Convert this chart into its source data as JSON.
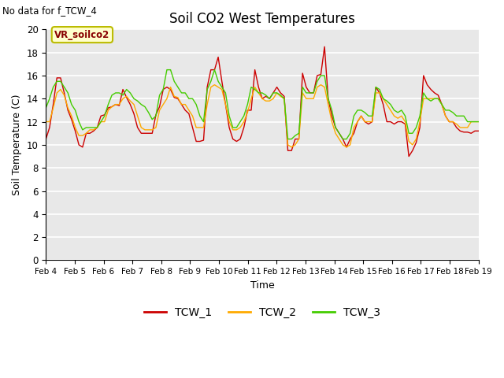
{
  "title": "Soil CO2 West Temperatures",
  "xlabel": "Time",
  "ylabel": "Soil Temperature (C)",
  "no_data_label": "No data for f_TCW_4",
  "annotation_label": "VR_soilco2",
  "ylim": [
    0,
    20
  ],
  "yticks": [
    0,
    2,
    4,
    6,
    8,
    10,
    12,
    14,
    16,
    18,
    20
  ],
  "x_labels": [
    "Feb 4",
    "Feb 5",
    "Feb 6",
    "Feb 7",
    "Feb 8",
    "Feb 9",
    "Feb 10",
    "Feb 11",
    "Feb 12",
    "Feb 13",
    "Feb 14",
    "Feb 15",
    "Feb 16",
    "Feb 17",
    "Feb 18",
    "Feb 19"
  ],
  "fig_bg": "#ffffff",
  "plot_bg": "#e8e8e8",
  "grid_color": "#ffffff",
  "line_colors": {
    "TCW_1": "#cc0000",
    "TCW_2": "#ffaa00",
    "TCW_3": "#44cc00"
  },
  "TCW_1": [
    10.5,
    11.5,
    13.5,
    15.8,
    15.8,
    14.5,
    13.0,
    12.2,
    11.2,
    10.0,
    9.8,
    11.0,
    11.0,
    11.2,
    11.5,
    12.5,
    12.6,
    13.2,
    13.3,
    13.5,
    13.4,
    14.8,
    14.1,
    13.5,
    12.7,
    11.5,
    11.0,
    11.0,
    11.0,
    11.0,
    12.6,
    13.3,
    14.8,
    15.0,
    14.8,
    14.1,
    14.0,
    13.5,
    13.0,
    12.7,
    11.5,
    10.3,
    10.3,
    10.4,
    15.0,
    16.5,
    16.5,
    17.6,
    15.5,
    13.5,
    11.5,
    10.5,
    10.3,
    10.5,
    11.5,
    13.0,
    13.0,
    16.5,
    15.0,
    14.0,
    14.2,
    14.0,
    14.5,
    15.0,
    14.5,
    14.2,
    9.5,
    9.5,
    10.5,
    10.5,
    16.2,
    15.0,
    14.5,
    14.5,
    16.0,
    16.1,
    18.5,
    14.0,
    12.5,
    11.5,
    11.0,
    10.5,
    9.8,
    10.5,
    11.0,
    12.0,
    12.5,
    12.0,
    11.8,
    12.0,
    15.0,
    14.5,
    13.5,
    12.0,
    12.0,
    11.8,
    12.0,
    12.0,
    11.8,
    9.0,
    9.5,
    10.2,
    11.5,
    16.0,
    15.2,
    14.8,
    14.5,
    14.3,
    13.5,
    12.5,
    12.0,
    12.0,
    11.5,
    11.2,
    11.1,
    11.1,
    11.0,
    11.2,
    11.2
  ],
  "TCW_2": [
    12.0,
    12.0,
    13.2,
    14.5,
    14.8,
    14.3,
    13.2,
    12.5,
    11.5,
    10.8,
    10.8,
    11.0,
    11.3,
    11.3,
    11.5,
    12.0,
    12.0,
    13.0,
    13.3,
    13.5,
    13.5,
    14.0,
    14.2,
    13.8,
    13.5,
    12.5,
    11.5,
    11.3,
    11.3,
    11.3,
    11.5,
    13.0,
    13.5,
    14.0,
    15.0,
    14.2,
    14.1,
    13.5,
    13.5,
    13.0,
    12.5,
    11.5,
    11.5,
    11.5,
    13.5,
    15.0,
    15.2,
    15.0,
    14.8,
    13.5,
    12.0,
    11.3,
    11.3,
    11.5,
    12.0,
    12.8,
    14.0,
    15.0,
    14.5,
    14.0,
    13.8,
    13.8,
    14.0,
    14.5,
    14.2,
    14.0,
    10.0,
    9.8,
    10.0,
    10.5,
    14.5,
    14.0,
    14.0,
    14.0,
    15.0,
    15.2,
    15.0,
    13.5,
    12.0,
    11.0,
    10.5,
    10.0,
    9.8,
    10.0,
    11.5,
    12.0,
    12.5,
    12.0,
    12.0,
    12.0,
    14.5,
    14.5,
    14.0,
    13.5,
    13.0,
    12.5,
    12.3,
    12.5,
    12.0,
    10.3,
    10.0,
    10.5,
    12.0,
    14.0,
    14.0,
    14.0,
    14.0,
    14.0,
    13.5,
    12.5,
    12.0,
    12.0,
    11.8,
    11.5,
    11.5,
    11.5,
    12.0,
    12.0,
    12.0
  ],
  "TCW_3": [
    13.2,
    14.0,
    15.0,
    15.5,
    15.5,
    15.0,
    14.5,
    13.5,
    13.0,
    12.0,
    11.3,
    11.5,
    11.5,
    11.5,
    11.5,
    12.0,
    12.5,
    13.5,
    14.3,
    14.5,
    14.5,
    14.3,
    14.8,
    14.5,
    14.0,
    13.8,
    13.5,
    13.3,
    12.8,
    12.2,
    12.5,
    14.3,
    14.8,
    16.5,
    16.5,
    15.5,
    15.0,
    14.5,
    14.5,
    14.0,
    14.0,
    13.5,
    12.5,
    12.0,
    14.8,
    15.5,
    16.5,
    15.5,
    15.0,
    14.5,
    12.5,
    11.5,
    11.5,
    12.0,
    12.5,
    13.5,
    15.0,
    14.8,
    14.5,
    14.5,
    14.3,
    14.0,
    14.5,
    14.5,
    14.3,
    14.0,
    10.5,
    10.5,
    10.8,
    11.0,
    15.0,
    14.5,
    14.5,
    14.5,
    15.5,
    16.0,
    16.0,
    14.0,
    13.0,
    11.5,
    11.0,
    10.5,
    10.5,
    11.0,
    12.5,
    13.0,
    13.0,
    12.8,
    12.5,
    12.5,
    15.0,
    14.8,
    14.0,
    13.8,
    13.5,
    13.0,
    12.8,
    13.0,
    12.5,
    11.0,
    11.0,
    11.5,
    12.5,
    14.5,
    14.0,
    13.8,
    14.0,
    14.0,
    13.5,
    13.0,
    13.0,
    12.8,
    12.5,
    12.5,
    12.5,
    12.0,
    12.0,
    12.0,
    12.0
  ]
}
